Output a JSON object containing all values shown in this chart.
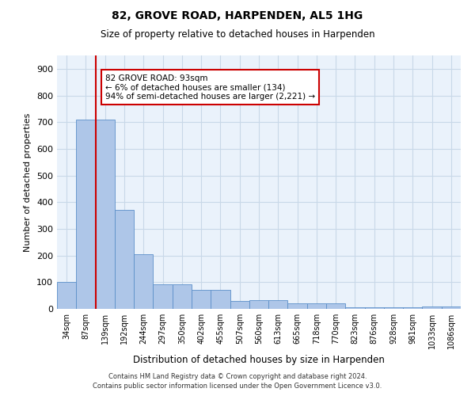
{
  "title1": "82, GROVE ROAD, HARPENDEN, AL5 1HG",
  "title2": "Size of property relative to detached houses in Harpenden",
  "xlabel": "Distribution of detached houses by size in Harpenden",
  "ylabel": "Number of detached properties",
  "categories": [
    "34sqm",
    "87sqm",
    "139sqm",
    "192sqm",
    "244sqm",
    "297sqm",
    "350sqm",
    "402sqm",
    "455sqm",
    "507sqm",
    "560sqm",
    "613sqm",
    "665sqm",
    "718sqm",
    "770sqm",
    "823sqm",
    "876sqm",
    "928sqm",
    "981sqm",
    "1033sqm",
    "1086sqm"
  ],
  "values": [
    100,
    710,
    710,
    370,
    205,
    93,
    93,
    72,
    72,
    30,
    32,
    32,
    20,
    20,
    20,
    7,
    7,
    7,
    7,
    10,
    10
  ],
  "bar_color": "#aec6e8",
  "bar_edge_color": "#5b8fc9",
  "grid_color": "#c8d8e8",
  "bg_color": "#eaf2fb",
  "annotation_text": "82 GROVE ROAD: 93sqm\n← 6% of detached houses are smaller (134)\n94% of semi-detached houses are larger (2,221) →",
  "vline_x_idx": 1,
  "annotation_box_color": "#ffffff",
  "annotation_box_edge": "#cc0000",
  "footer1": "Contains HM Land Registry data © Crown copyright and database right 2024.",
  "footer2": "Contains public sector information licensed under the Open Government Licence v3.0.",
  "ylim": [
    0,
    950
  ],
  "yticks": [
    0,
    100,
    200,
    300,
    400,
    500,
    600,
    700,
    800,
    900
  ]
}
